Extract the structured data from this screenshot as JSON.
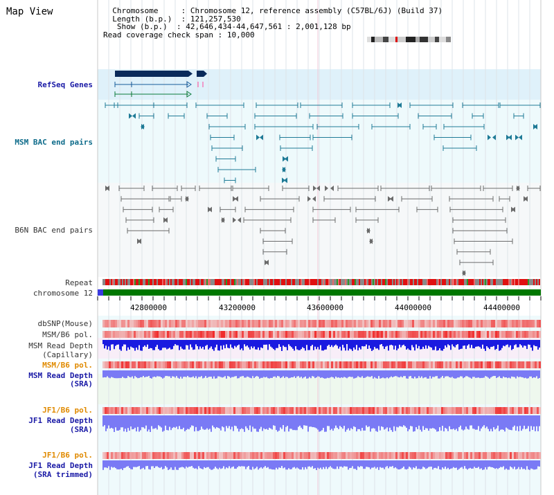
{
  "app": {
    "title": "Map View"
  },
  "info": {
    "chromosome_label": "Chromosome",
    "chromosome_value": "Chromosome 12, reference assembly (C57BL/6J) (Build 37)",
    "length_label": "Length (b.p.)",
    "length_value": "121,257,530",
    "show_label": "Show (b.p.)",
    "show_value": "42,646,434-44,647,561 : 2,001,128 bp",
    "coverage_label": "Read coverage check span",
    "coverage_value": "10,000"
  },
  "tracks": {
    "refseq": "RefSeq Genes",
    "msm_bac": "MSM BAC end pairs",
    "b6n_bac": "B6N BAC end pairs",
    "repeat": "Repeat",
    "chromosome": "chromosome 12",
    "dbsnp": "dbSNP(Mouse)",
    "msm_b6_pol_1": "MSM/B6 pol.",
    "msm_read_depth_cap_1": "MSM Read Depth",
    "msm_read_depth_cap_2": "(Capillary)",
    "msm_b6_pol_2": "MSM/B6 pol.",
    "msm_read_depth_sra_1": "MSM Read Depth",
    "msm_read_depth_sra_2": "(SRA)",
    "jf1_b6_pol_1": "JF1/B6 pol.",
    "jf1_read_depth_sra_1": "JF1 Read Depth",
    "jf1_read_depth_sra_2": "(SRA)",
    "jf1_b6_pol_2": "JF1/B6 pol.",
    "jf1_read_depth_trim_1": "JF1 Read Depth",
    "jf1_read_depth_trim_2": "(SRA trimmed)"
  },
  "axis": {
    "ticks": [
      "42800000",
      "43200000",
      "43600000",
      "44000000",
      "44400000"
    ]
  },
  "colors": {
    "refseq_band": "#dff1fa",
    "bac_band": "#eefafc",
    "msm_bac_feature": "#1e7a96",
    "b6n_bac_feature": "#6b6b6b",
    "refseq_feature": "#0a2a5a",
    "chromosome_bar": "#007700",
    "repeat_red": "#e01010",
    "depth_blue": "#1a1ae0",
    "depth_light_blue": "#7a7af5",
    "snp_pink": "#f08080",
    "pol_label_orange": "#e08a00"
  }
}
